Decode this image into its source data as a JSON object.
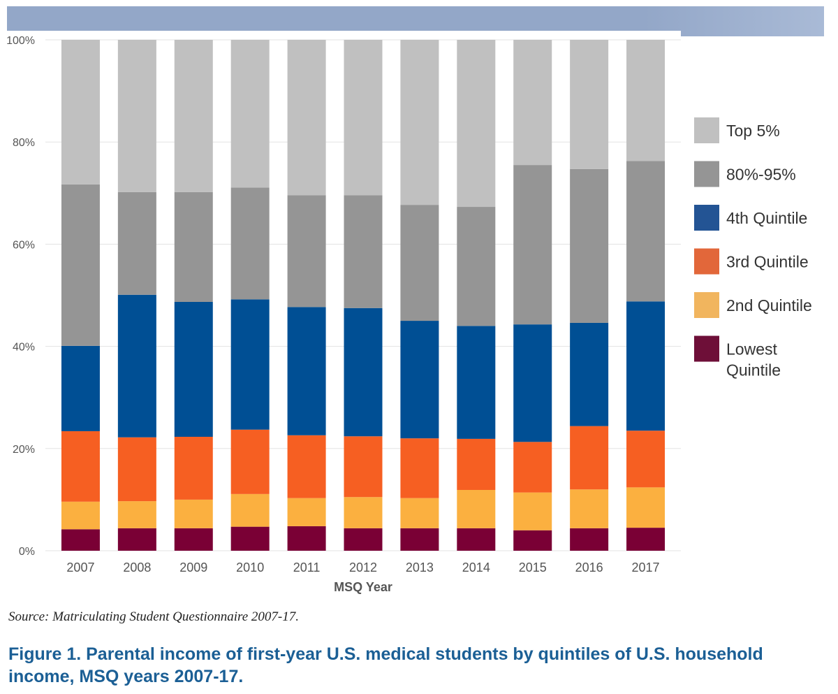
{
  "chart_data": {
    "type": "bar",
    "stacked": true,
    "title": "",
    "xlabel": "MSQ Year",
    "ylabel": "",
    "ylim": [
      0,
      100
    ],
    "yticks": [
      "0%",
      "20%",
      "40%",
      "60%",
      "80%",
      "100%"
    ],
    "grid": true,
    "legend_position": "right",
    "categories": [
      "2007",
      "2008",
      "2009",
      "2010",
      "2011",
      "2012",
      "2013",
      "2014",
      "2015",
      "2016",
      "2017"
    ],
    "series": [
      {
        "name": "Lowest Quintile",
        "color": "#7a0035",
        "values": [
          4.2,
          4.4,
          4.4,
          4.7,
          4.8,
          4.4,
          4.4,
          4.4,
          4.0,
          4.4,
          4.5
        ]
      },
      {
        "name": "2nd Quintile",
        "color": "#fbb040",
        "values": [
          5.4,
          5.3,
          5.6,
          6.4,
          5.5,
          6.1,
          5.9,
          7.5,
          7.4,
          7.6,
          7.9
        ]
      },
      {
        "name": "3rd Quintile",
        "color": "#f65f22",
        "values": [
          13.8,
          12.5,
          12.3,
          12.6,
          12.3,
          11.9,
          11.7,
          10.0,
          9.9,
          12.4,
          11.1
        ]
      },
      {
        "name": "4th Quintile",
        "color": "#004f94",
        "values": [
          16.7,
          27.9,
          26.4,
          25.5,
          25.1,
          25.1,
          23.0,
          22.1,
          23.0,
          20.2,
          25.3
        ]
      },
      {
        "name": "80%-95%",
        "color": "#959595",
        "values": [
          31.6,
          20.1,
          21.5,
          21.9,
          21.9,
          22.1,
          22.7,
          23.3,
          31.2,
          30.1,
          27.5
        ]
      },
      {
        "name": "Top 5%",
        "color": "#c0c0c0",
        "values": [
          28.3,
          29.8,
          29.8,
          28.9,
          30.4,
          30.4,
          32.3,
          32.7,
          24.5,
          25.3,
          23.7
        ]
      }
    ],
    "legend": [
      {
        "label": "Top 5%",
        "color": "#c0c0c0"
      },
      {
        "label": "80%-95%",
        "color": "#959595"
      },
      {
        "label": "4th Quintile",
        "color": "#235494"
      },
      {
        "label": "3rd Quintile",
        "color": "#e2673a"
      },
      {
        "label": "2nd Quintile",
        "color": "#f1b55e"
      },
      {
        "label": "Lowest Quintile",
        "color": "#6e0f38"
      }
    ]
  },
  "source": "Source: Matriculating Student Questionnaire 2007-17.",
  "caption": "Figure 1. Parental income of first-year U.S. medical students by quintiles of U.S. household income, MSQ years 2007-17."
}
